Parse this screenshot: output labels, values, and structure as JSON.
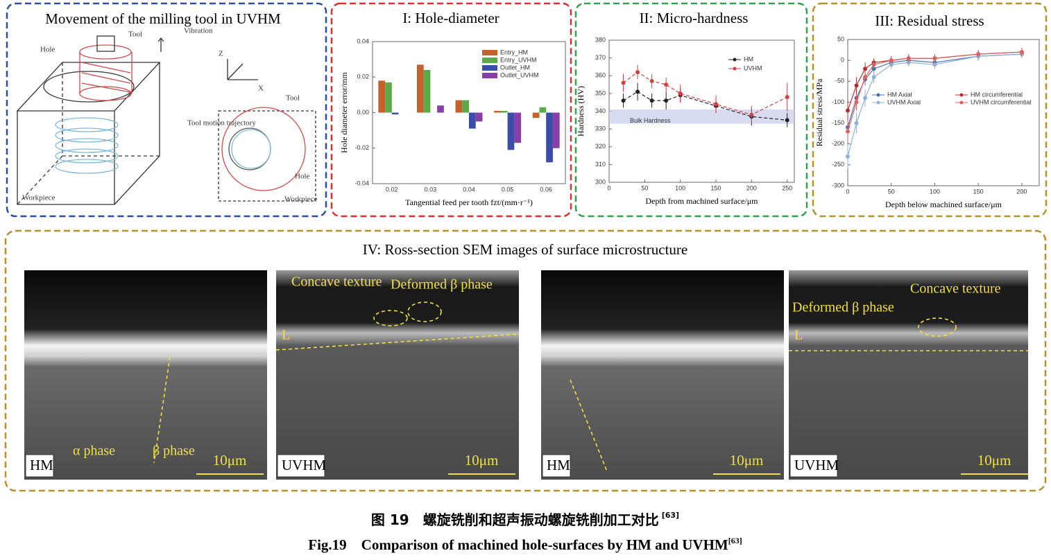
{
  "panels": {
    "movement": {
      "title": "Movement of the milling tool in UVHM",
      "labels": [
        "Tool",
        "Vibration",
        "Hole",
        "Workpiece",
        "Tool motion trajectory",
        "Tool",
        "Hole",
        "Workpiece",
        "Z",
        "X"
      ]
    },
    "sem": {
      "title": "IV: Ross-section SEM images of surface microstructure",
      "images": [
        {
          "label": "HM",
          "scale": "10μm",
          "annotations": [
            "α phase",
            "β phase"
          ]
        },
        {
          "label": "UVHM",
          "scale": "10μm",
          "annotations": [
            "Concave texture",
            "Deformed β phase",
            "L"
          ]
        },
        {
          "label": "HM",
          "scale": "10μm",
          "annotations": []
        },
        {
          "label": "UVHM",
          "scale": "10μm",
          "annotations": [
            "Concave texture",
            "Deformed β phase",
            "L"
          ]
        }
      ]
    }
  },
  "chart_data": [
    {
      "type": "bar",
      "title": "I: Hole-diameter",
      "x_label": "Tangential feed per tooth fzt/(mm·r⁻¹)",
      "y_label": "Hole diameter error/mm",
      "categories": [
        "0.02",
        "0.03",
        "0.04",
        "0.05",
        "0.06"
      ],
      "series": [
        {
          "name": "Entry_HM",
          "color": "#c4622e",
          "values": [
            0.018,
            0.027,
            0.007,
            0.001,
            -0.003
          ]
        },
        {
          "name": "Entry_UVHM",
          "color": "#5aaa4a",
          "values": [
            0.017,
            0.024,
            0.007,
            0.001,
            0.003
          ]
        },
        {
          "name": "Outlet_HM",
          "color": "#3a4ea8",
          "values": [
            -0.001,
            0.0,
            -0.009,
            -0.021,
            -0.028
          ]
        },
        {
          "name": "Outlet_UVHM",
          "color": "#8a3fa8",
          "values": [
            0.0,
            0.004,
            -0.005,
            -0.017,
            -0.02
          ]
        }
      ],
      "ylim": [
        -0.04,
        0.04
      ],
      "yticks": [
        -0.04,
        -0.02,
        {
          "value": 0,
          "label": "0.00"
        },
        0.02,
        0.04
      ]
    },
    {
      "type": "line",
      "title": "II: Micro-hardness",
      "x_label": "Depth from machined surface/μm",
      "y_label": "Hardness (HV)",
      "annotation": "Bulk Hardness",
      "bulk_hardness_range": [
        333,
        341
      ],
      "x": [
        20,
        40,
        60,
        80,
        100,
        150,
        200,
        250
      ],
      "series": [
        {
          "name": "HM",
          "color": "#222222",
          "values": [
            346,
            351,
            346,
            346,
            349,
            343,
            337,
            335
          ],
          "errors": [
            4,
            5,
            4,
            5,
            4,
            4,
            5,
            4
          ]
        },
        {
          "name": "UVHM",
          "color": "#d04040",
          "values": [
            356,
            362,
            357,
            355,
            350,
            344,
            338,
            348
          ],
          "errors": [
            5,
            4,
            4,
            4,
            5,
            5,
            5,
            8
          ]
        }
      ],
      "xlim": [
        0,
        260
      ],
      "xticks": [
        0,
        50,
        100,
        150,
        200,
        250
      ],
      "ylim": [
        300,
        380
      ],
      "yticks": [
        300,
        310,
        320,
        330,
        340,
        350,
        360,
        370,
        380
      ]
    },
    {
      "type": "line",
      "title": "III: Residual stress",
      "x_label": "Depth below machined surface/μm",
      "y_label": "Residual stress/MPa",
      "x": [
        0,
        10,
        20,
        30,
        50,
        70,
        100,
        150,
        200
      ],
      "series": [
        {
          "name": "HM Axial",
          "color": "#4a6fb0",
          "values": [
            -160,
            -90,
            -45,
            -20,
            -5,
            0,
            -5,
            10,
            15
          ],
          "errors": [
            25,
            20,
            15,
            15,
            10,
            10,
            10,
            10,
            10
          ]
        },
        {
          "name": "HM circumferential",
          "color": "#b03030",
          "values": [
            -120,
            -60,
            -20,
            -5,
            0,
            5,
            5,
            15,
            20
          ],
          "errors": [
            25,
            20,
            15,
            10,
            10,
            10,
            10,
            10,
            10
          ]
        },
        {
          "name": "UVHM Axial",
          "color": "#8fb0d8",
          "values": [
            -230,
            -150,
            -90,
            -40,
            -10,
            -5,
            -10,
            10,
            15
          ],
          "errors": [
            30,
            25,
            20,
            15,
            10,
            10,
            10,
            10,
            10
          ]
        },
        {
          "name": "UVHM circumferential",
          "color": "#e06060",
          "values": [
            -170,
            -100,
            -40,
            -10,
            0,
            5,
            5,
            15,
            20
          ],
          "errors": [
            25,
            20,
            15,
            10,
            10,
            10,
            10,
            10,
            10
          ]
        }
      ],
      "xlim": [
        0,
        220
      ],
      "xticks": [
        0,
        50,
        100,
        150,
        200
      ],
      "ylim": [
        -300,
        50
      ],
      "yticks": [
        -300,
        -250,
        -200,
        -150,
        -100,
        -50,
        0,
        50
      ]
    }
  ],
  "caption": {
    "cn": "图 19　螺旋铣削和超声振动螺旋铣削加工对比",
    "cn_ref": "[63]",
    "en": "Fig.19　Comparison of machined hole-surfaces by HM and UVHM",
    "en_ref": "[63]"
  }
}
